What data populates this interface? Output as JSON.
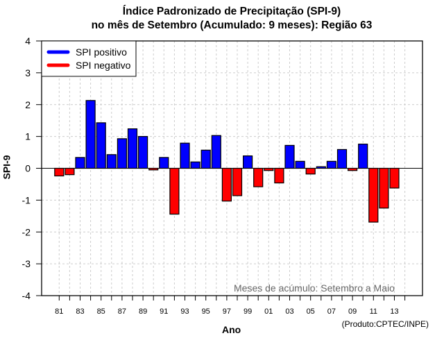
{
  "chart_data": {
    "type": "bar",
    "title": "Índice Padronizado de Precipitação (SPI-9)",
    "subtitle": "no mês de Setembro (Acumulado: 9 meses): Região 63",
    "xlabel": "Ano",
    "ylabel": "SPI-9",
    "ylim": [
      -4,
      4
    ],
    "yticks": [
      -4,
      -3,
      -2,
      -1,
      0,
      1,
      2,
      3,
      4
    ],
    "xlim_years": [
      1980,
      2015
    ],
    "xtick_labels": [
      "81",
      "83",
      "85",
      "87",
      "89",
      "91",
      "93",
      "95",
      "97",
      "99",
      "01",
      "03",
      "05",
      "07",
      "09",
      "11",
      "13"
    ],
    "xtick_label_years": [
      1981,
      1983,
      1985,
      1987,
      1989,
      1991,
      1993,
      1995,
      1997,
      1999,
      2001,
      2003,
      2005,
      2007,
      2009,
      2011,
      2013
    ],
    "grid": true,
    "legend_position": "top-left",
    "legend": [
      {
        "label": "SPI positivo",
        "color": "#0000ff"
      },
      {
        "label": "SPI negativo",
        "color": "#ff0000"
      }
    ],
    "categories": [
      1981,
      1982,
      1983,
      1984,
      1985,
      1986,
      1987,
      1988,
      1989,
      1990,
      1991,
      1992,
      1993,
      1994,
      1995,
      1996,
      1997,
      1998,
      1999,
      2000,
      2001,
      2002,
      2003,
      2004,
      2005,
      2006,
      2007,
      2008,
      2009,
      2010,
      2011,
      2012,
      2013
    ],
    "values": [
      -0.24,
      -0.2,
      0.34,
      2.13,
      1.43,
      0.43,
      0.93,
      1.24,
      1.0,
      -0.05,
      0.34,
      -1.44,
      0.79,
      0.2,
      0.57,
      1.03,
      -1.03,
      -0.86,
      0.39,
      -0.58,
      -0.07,
      -0.46,
      0.72,
      0.22,
      -0.18,
      0.05,
      0.22,
      0.59,
      -0.07,
      0.76,
      -1.69,
      -1.25,
      -0.62
    ],
    "annotation": "Meses de acúmulo: Setembro a Maio",
    "positive_color": "#0000ff",
    "negative_color": "#ff0000"
  },
  "credit": "(Produto:CPTEC/INPE)"
}
